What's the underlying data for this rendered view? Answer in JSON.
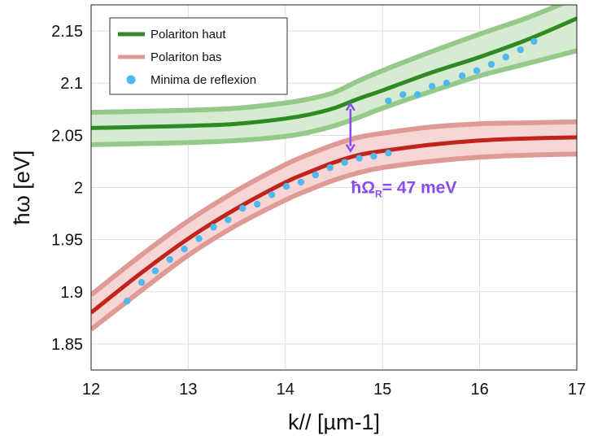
{
  "chart_data": {
    "type": "line",
    "title": "",
    "xlabel": "k// [µm-1]",
    "ylabel": "ħω [eV]",
    "xlim": [
      12,
      17
    ],
    "ylim": [
      1.825,
      2.175
    ],
    "xticks": [
      "12",
      "13",
      "14",
      "15",
      "16",
      "17"
    ],
    "yticks": [
      "1.85",
      "1.9",
      "1.95",
      "2",
      "2.05",
      "2.1",
      "2.15"
    ],
    "grid": true,
    "legend_position": "top-left",
    "colors": {
      "upper": "#2e8b22",
      "upper_band": "#94c98a",
      "upper_fill": "#d6ebd2",
      "lower": "#c0241c",
      "lower_band": "#e09a96",
      "lower_fill": "#f6d6d4",
      "points": "#4fb9ee",
      "annotation": "#8a4bf0"
    },
    "series": [
      {
        "name": "Polariton haut",
        "style": "line",
        "x": [
          12.0,
          12.5,
          13.0,
          13.5,
          14.0,
          14.25,
          14.5,
          14.75,
          15.0,
          15.5,
          16.0,
          16.5,
          17.0
        ],
        "y": [
          2.057,
          2.058,
          2.059,
          2.061,
          2.066,
          2.07,
          2.076,
          2.085,
          2.093,
          2.11,
          2.125,
          2.142,
          2.162
        ],
        "band_upper": [
          2.072,
          2.073,
          2.074,
          2.076,
          2.081,
          2.085,
          2.091,
          2.102,
          2.112,
          2.13,
          2.147,
          2.163,
          2.182
        ],
        "band_lower": [
          2.041,
          2.042,
          2.043,
          2.045,
          2.049,
          2.053,
          2.059,
          2.067,
          2.076,
          2.092,
          2.107,
          2.119,
          2.131
        ]
      },
      {
        "name": "Polariton bas",
        "style": "line",
        "x": [
          12.0,
          12.5,
          13.0,
          13.5,
          14.0,
          14.25,
          14.5,
          14.75,
          15.0,
          15.5,
          16.0,
          16.5,
          17.0
        ],
        "y": [
          1.88,
          1.917,
          1.951,
          1.98,
          2.005,
          2.015,
          2.024,
          2.031,
          2.035,
          2.041,
          2.045,
          2.047,
          2.048
        ],
        "band_upper": [
          1.897,
          1.934,
          1.968,
          1.997,
          2.022,
          2.032,
          2.041,
          2.048,
          2.052,
          2.058,
          2.061,
          2.062,
          2.063
        ],
        "band_lower": [
          1.864,
          1.9,
          1.935,
          1.964,
          1.988,
          1.998,
          2.007,
          2.014,
          2.019,
          2.025,
          2.029,
          2.031,
          2.032
        ]
      },
      {
        "name": "Minima de reflexion",
        "style": "scatter",
        "x": [
          12.37,
          12.52,
          12.66,
          12.81,
          12.96,
          13.11,
          13.26,
          13.41,
          13.56,
          13.71,
          13.86,
          14.01,
          14.16,
          14.31,
          14.46,
          14.61,
          14.76,
          14.91,
          15.06,
          15.06,
          15.21,
          15.36,
          15.51,
          15.66,
          15.82,
          15.97,
          16.12,
          16.27,
          16.42,
          16.56
        ],
        "y": [
          1.891,
          1.909,
          1.92,
          1.931,
          1.941,
          1.951,
          1.962,
          1.969,
          1.98,
          1.984,
          1.993,
          2.001,
          2.005,
          2.012,
          2.019,
          2.024,
          2.028,
          2.03,
          2.033,
          2.083,
          2.089,
          2.089,
          2.097,
          2.1,
          2.107,
          2.112,
          2.118,
          2.125,
          2.132,
          2.14
        ]
      }
    ],
    "annotations": [
      {
        "text": "ħΩR= 47 meV",
        "text_main": "ħΩ",
        "text_sub": "R",
        "text_rest": "= 47 meV",
        "arrow_x": 14.67,
        "arrow_y": [
          2.035,
          2.08
        ],
        "text_at": [
          14.7,
          2.0
        ]
      }
    ]
  }
}
